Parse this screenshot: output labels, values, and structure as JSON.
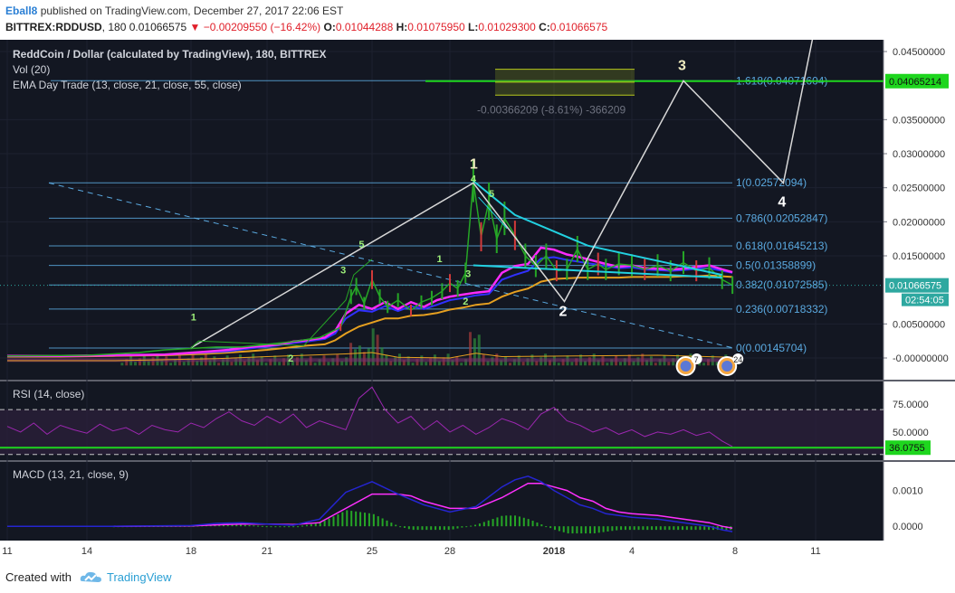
{
  "header": {
    "author": "Eball8",
    "published": "published on TradingView.com, December 27, 2017 22:06 EST",
    "symbol": "BITTREX:RDDUSD",
    "interval": "180",
    "last": "0.01066575",
    "change": "−0.00209550 (−16.42%)",
    "o_label": "O:",
    "o": "0.01044288",
    "h_label": "H:",
    "h": "0.01075950",
    "l_label": "L:",
    "l": "0.01029300",
    "c_label": "C:",
    "c": "0.01066575"
  },
  "legend": {
    "title": "ReddCoin / Dollar (calculated by TradingView), 180, BITTREX",
    "vol": "Vol (20)",
    "ema": "EMA Day Trade (13, close, 21, close, 55, close)"
  },
  "footer": {
    "created": "Created with",
    "brand": "TradingView"
  },
  "chart_data": [
    {
      "type": "line",
      "panel": "price",
      "title": "ReddCoin / Dollar (calculated by TradingView), 180, BITTREX",
      "y_axis_labels": [
        "0.04500000",
        "0.03500000",
        "0.03000000",
        "0.02500000",
        "0.02000000",
        "0.01500000",
        "0.00500000",
        "-0.00000000"
      ],
      "y_axis_values": [
        0.045,
        0.035,
        0.03,
        0.025,
        0.02,
        0.015,
        0.005,
        0
      ],
      "x_axis_labels": [
        "11",
        "14",
        "18",
        "21",
        "25",
        "28",
        "2018",
        "4",
        "8",
        "11"
      ],
      "ylim": [
        -0.0013,
        0.0465
      ],
      "price_tag": {
        "value": 0.01066575,
        "label": "0.01066575",
        "countdown": "02:54:05"
      },
      "level_tag": {
        "value": 0.04065214,
        "label": "0.04065214"
      },
      "fib_levels": [
        {
          "label": "0(0.00145704)",
          "value": 0.00145704
        },
        {
          "label": "0.236(0.00718332)",
          "value": 0.00718332
        },
        {
          "label": "0.382(0.01072585)",
          "value": 0.01072585
        },
        {
          "label": "0.5(0.01358899)",
          "value": 0.01358899
        },
        {
          "label": "0.618(0.01645213)",
          "value": 0.01645213
        },
        {
          "label": "0.786(0.02052847)",
          "value": 0.02052847
        },
        {
          "label": "1(0.02572094)",
          "value": 0.02572094
        },
        {
          "label": "1.618(0.04071604)",
          "value": 0.04071604
        }
      ],
      "measure_label": "-0.00366209 (-8.61%) -366209",
      "wave_labels": [
        "1",
        "2",
        "3",
        "4"
      ],
      "count_labels": [
        "1",
        "2",
        "3",
        "5",
        "1",
        "2",
        "3",
        "4",
        "5"
      ],
      "series": [
        {
          "name": "EMA 13",
          "color": "#ff2aff",
          "x": [
            0,
            2,
            4,
            6,
            7.5,
            8.5,
            9.3,
            10,
            10.5,
            11,
            11.5,
            12.2,
            12.6,
            13,
            13.5,
            14,
            14.5,
            15,
            15.5,
            16,
            16.5,
            17,
            17.5,
            18,
            18.5,
            19,
            19.5,
            20,
            20.5,
            21,
            21.5,
            22,
            22.5,
            23,
            23.5,
            24,
            24.5,
            25,
            25.5,
            26,
            26.5,
            27,
            27.5,
            27.9
          ],
          "y": [
            0.0003,
            0.0003,
            0.0004,
            0.0005,
            0.0009,
            0.0012,
            0.0016,
            0.0018,
            0.002,
            0.0024,
            0.0026,
            0.003,
            0.004,
            0.0065,
            0.0078,
            0.0072,
            0.0082,
            0.0072,
            0.0082,
            0.0075,
            0.0085,
            0.009,
            0.0093,
            0.0096,
            0.0098,
            0.0125,
            0.0135,
            0.0138,
            0.0162,
            0.0159,
            0.0152,
            0.0148,
            0.0143,
            0.0138,
            0.0134,
            0.0136,
            0.0132,
            0.0131,
            0.013,
            0.0131,
            0.0134,
            0.0136,
            0.013,
            0.0126
          ]
        },
        {
          "name": "EMA 21",
          "color": "#3030ff",
          "x": [
            0,
            2,
            4,
            6,
            7.5,
            8.5,
            9.3,
            10,
            10.5,
            11,
            11.5,
            12.2,
            12.6,
            13,
            13.5,
            14,
            14.5,
            15,
            15.5,
            16,
            16.5,
            17,
            17.5,
            18,
            18.5,
            19,
            19.5,
            20,
            20.5,
            21,
            21.5,
            22,
            22.5,
            23,
            23.5,
            24,
            24.5,
            25,
            25.5,
            26,
            26.5,
            27,
            27.5,
            27.9
          ],
          "y": [
            0.0003,
            0.0003,
            0.0004,
            0.0005,
            0.0008,
            0.001,
            0.0014,
            0.0017,
            0.0019,
            0.0022,
            0.0024,
            0.0028,
            0.0036,
            0.0058,
            0.007,
            0.0068,
            0.0076,
            0.0069,
            0.0076,
            0.0072,
            0.0078,
            0.0085,
            0.0088,
            0.0092,
            0.0094,
            0.0115,
            0.0122,
            0.0128,
            0.0146,
            0.0148,
            0.0144,
            0.0141,
            0.0138,
            0.0135,
            0.0132,
            0.0133,
            0.013,
            0.0129,
            0.0128,
            0.0129,
            0.0131,
            0.0132,
            0.0128,
            0.0125
          ]
        },
        {
          "name": "EMA 55",
          "color": "#e6a020",
          "x": [
            0,
            2,
            4,
            6,
            7.5,
            8.5,
            9.3,
            10,
            10.5,
            11,
            11.5,
            12.2,
            12.6,
            13,
            13.5,
            14,
            14.5,
            15,
            15.5,
            16,
            16.5,
            17,
            17.5,
            18,
            18.5,
            19,
            19.5,
            20,
            20.5,
            21,
            21.5,
            22,
            22.5,
            23,
            23.5,
            24,
            24.5,
            25,
            25.5,
            26,
            26.5,
            27,
            27.5,
            27.9
          ],
          "y": [
            0.0002,
            0.0002,
            0.0003,
            0.0004,
            0.0006,
            0.0008,
            0.001,
            0.0012,
            0.0014,
            0.0016,
            0.0018,
            0.002,
            0.0026,
            0.0036,
            0.0046,
            0.0052,
            0.0058,
            0.0058,
            0.0062,
            0.0063,
            0.0066,
            0.0071,
            0.0074,
            0.0078,
            0.008,
            0.009,
            0.0097,
            0.0102,
            0.0112,
            0.0116,
            0.0117,
            0.0118,
            0.0118,
            0.0118,
            0.0118,
            0.0119,
            0.0119,
            0.0119,
            0.0119,
            0.012,
            0.012,
            0.0121,
            0.012,
            0.0119
          ]
        }
      ]
    },
    {
      "type": "line",
      "panel": "rsi",
      "title": "RSI (14, close)",
      "y_axis_labels": [
        "75.0000",
        "50.0000"
      ],
      "y_axis_values": [
        75,
        50
      ],
      "bands": [
        70,
        30
      ],
      "ylim": [
        25,
        95
      ],
      "last_tag": {
        "value": 36.0755,
        "label": "36.0755"
      },
      "series": [
        {
          "name": "RSI",
          "color": "#9c27b0",
          "x": [
            0,
            0.5,
            1,
            1.5,
            2,
            2.5,
            3,
            3.5,
            4,
            4.5,
            5,
            5.5,
            6,
            6.5,
            7,
            7.5,
            8,
            8.5,
            9,
            9.5,
            10,
            10.5,
            11,
            11.5,
            12,
            12.5,
            13,
            13.5,
            14,
            14.5,
            15,
            15.5,
            16,
            16.5,
            17,
            17.5,
            18,
            18.5,
            19,
            19.5,
            20,
            20.5,
            21,
            21.5,
            22,
            22.5,
            23,
            23.5,
            24,
            24.5,
            25,
            25.5,
            26,
            26.5,
            27,
            27.5,
            27.9
          ],
          "y": [
            55,
            50,
            58,
            48,
            56,
            52,
            49,
            57,
            51,
            54,
            48,
            56,
            52,
            50,
            58,
            54,
            62,
            68,
            60,
            56,
            64,
            58,
            66,
            54,
            60,
            56,
            52,
            80,
            90,
            70,
            58,
            64,
            52,
            60,
            50,
            56,
            48,
            54,
            62,
            58,
            52,
            66,
            72,
            60,
            56,
            50,
            54,
            48,
            52,
            46,
            50,
            48,
            52,
            47,
            50,
            42,
            37
          ]
        }
      ]
    },
    {
      "type": "line",
      "panel": "macd",
      "title": "MACD (13, 21, close, 9)",
      "y_axis_labels": [
        "0.0010",
        "0.0000"
      ],
      "y_axis_values": [
        0.001,
        0
      ],
      "ylim": [
        -0.0004,
        0.0018
      ],
      "series": [
        {
          "name": "MACD",
          "color": "#2525d0",
          "x": [
            0,
            4,
            7,
            8,
            9,
            10,
            11,
            12,
            13,
            14,
            15,
            15.5,
            16,
            17,
            18,
            19,
            19.5,
            20,
            20.5,
            21,
            21.5,
            22,
            22.5,
            23,
            23.5,
            24,
            25,
            26,
            27,
            27.5,
            27.9
          ],
          "y": [
            0,
            0,
            2e-05,
            8e-05,
            0.0001,
            6e-05,
            3e-05,
            0.0002,
            0.00095,
            0.00125,
            0.0009,
            0.00075,
            0.0006,
            0.0004,
            0.00055,
            0.0011,
            0.0013,
            0.0014,
            0.00125,
            0.001,
            0.0008,
            0.0006,
            0.0005,
            0.00035,
            0.0003,
            0.00025,
            0.0002,
            0.0001,
            0,
            -0.0001,
            -0.00015
          ]
        },
        {
          "name": "Signal",
          "color": "#ff30ff",
          "x": [
            0,
            4,
            7,
            8,
            9,
            10,
            11,
            12,
            13,
            14,
            15,
            15.5,
            16,
            17,
            18,
            19,
            19.5,
            20,
            20.5,
            21,
            21.5,
            22,
            22.5,
            23,
            23.5,
            24,
            25,
            26,
            27,
            27.5,
            27.9
          ],
          "y": [
            0,
            0,
            1e-05,
            4e-05,
            6e-05,
            6e-05,
            5e-05,
            0.0001,
            0.0005,
            0.0009,
            0.0009,
            0.00085,
            0.0007,
            0.0005,
            0.0005,
            0.0008,
            0.001,
            0.0012,
            0.0012,
            0.0011,
            0.001,
            0.0008,
            0.0007,
            0.0005,
            0.0004,
            0.00035,
            0.0003,
            0.0002,
            0.0001,
            0,
            -5e-05
          ]
        }
      ],
      "histogram_color": "#26a626"
    }
  ]
}
